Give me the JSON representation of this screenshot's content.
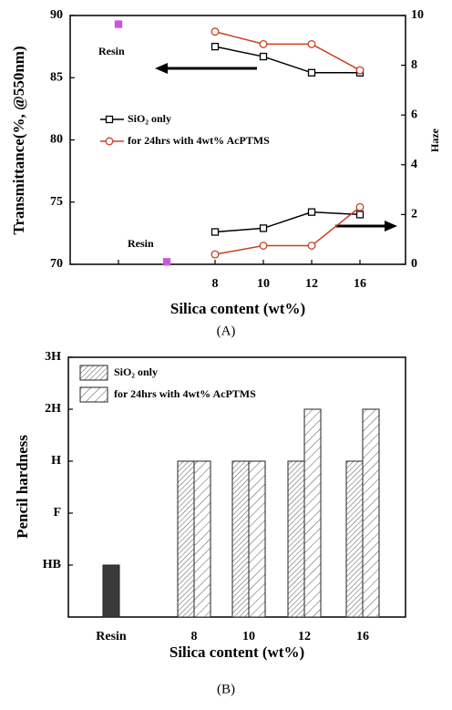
{
  "chart_data": [
    {
      "type": "line",
      "xlabel": "Silica content (wt%)",
      "ylabel": "Transmittance(%, @550nm)",
      "y2label": "Haze",
      "caption": "(A)",
      "categories": [
        null,
        null,
        "8",
        "10",
        "12",
        "16"
      ],
      "ylim": [
        70,
        90
      ],
      "yticks": [
        70,
        75,
        80,
        85,
        90
      ],
      "y2lim": [
        0,
        10
      ],
      "y2ticks": [
        0,
        2,
        4,
        6,
        8,
        10
      ],
      "legend": "center left",
      "annotations": [
        "Resin",
        "Resin"
      ],
      "series": [
        {
          "name": "SiO₂ only",
          "color": "#000000",
          "marker": "square",
          "values": [
            null,
            null,
            87.5,
            86.7,
            85.4,
            85.4
          ]
        },
        {
          "name": "for 24hrs with 4wt% AcPTMS",
          "color": "#c8401e",
          "marker": "circle",
          "values": [
            null,
            null,
            88.7,
            87.7,
            87.7,
            85.6
          ]
        },
        {
          "axis": "y2",
          "color": "#000000",
          "marker": "square",
          "values": [
            null,
            null,
            1.3,
            1.45,
            2.1,
            2.0
          ]
        },
        {
          "axis": "y2",
          "color": "#c8401e",
          "marker": "circle",
          "values": [
            null,
            null,
            0.4,
            0.75,
            0.75,
            2.3
          ]
        },
        {
          "color": "#cc55dd",
          "marker": "square",
          "filled": true,
          "values": [
            89.3,
            null,
            null,
            null,
            null,
            null
          ]
        },
        {
          "axis": "y2",
          "color": "#cc55dd",
          "marker": "square",
          "filled": true,
          "values": [
            null,
            0.1,
            null,
            null,
            null,
            null
          ]
        }
      ]
    },
    {
      "type": "bar",
      "xlabel": "Silica content (wt%)",
      "ylabel": "Pencil hardness",
      "caption": "(B)",
      "categories": [
        "Resin",
        "8",
        "10",
        "12",
        "16"
      ],
      "ylim": [
        0,
        5
      ],
      "yticks": [
        {
          "value": 1,
          "label": "HB"
        },
        {
          "value": 2,
          "label": "F"
        },
        {
          "value": 3,
          "label": "H"
        },
        {
          "value": 4,
          "label": "2H"
        },
        {
          "value": 5,
          "label": "3H"
        }
      ],
      "legend": "upper left",
      "series": [
        {
          "name": "SiO₂ only",
          "color": "#555555",
          "hatch": "dense",
          "values": [
            null,
            3,
            3,
            3,
            3
          ]
        },
        {
          "name": "for 24hrs with 4wt% AcPTMS",
          "color": "#555555",
          "hatch": "sparse",
          "values": [
            null,
            3,
            3,
            4,
            4
          ]
        },
        {
          "color": "#3a3a3a",
          "values": [
            1,
            null,
            null,
            null,
            null
          ]
        }
      ]
    }
  ]
}
